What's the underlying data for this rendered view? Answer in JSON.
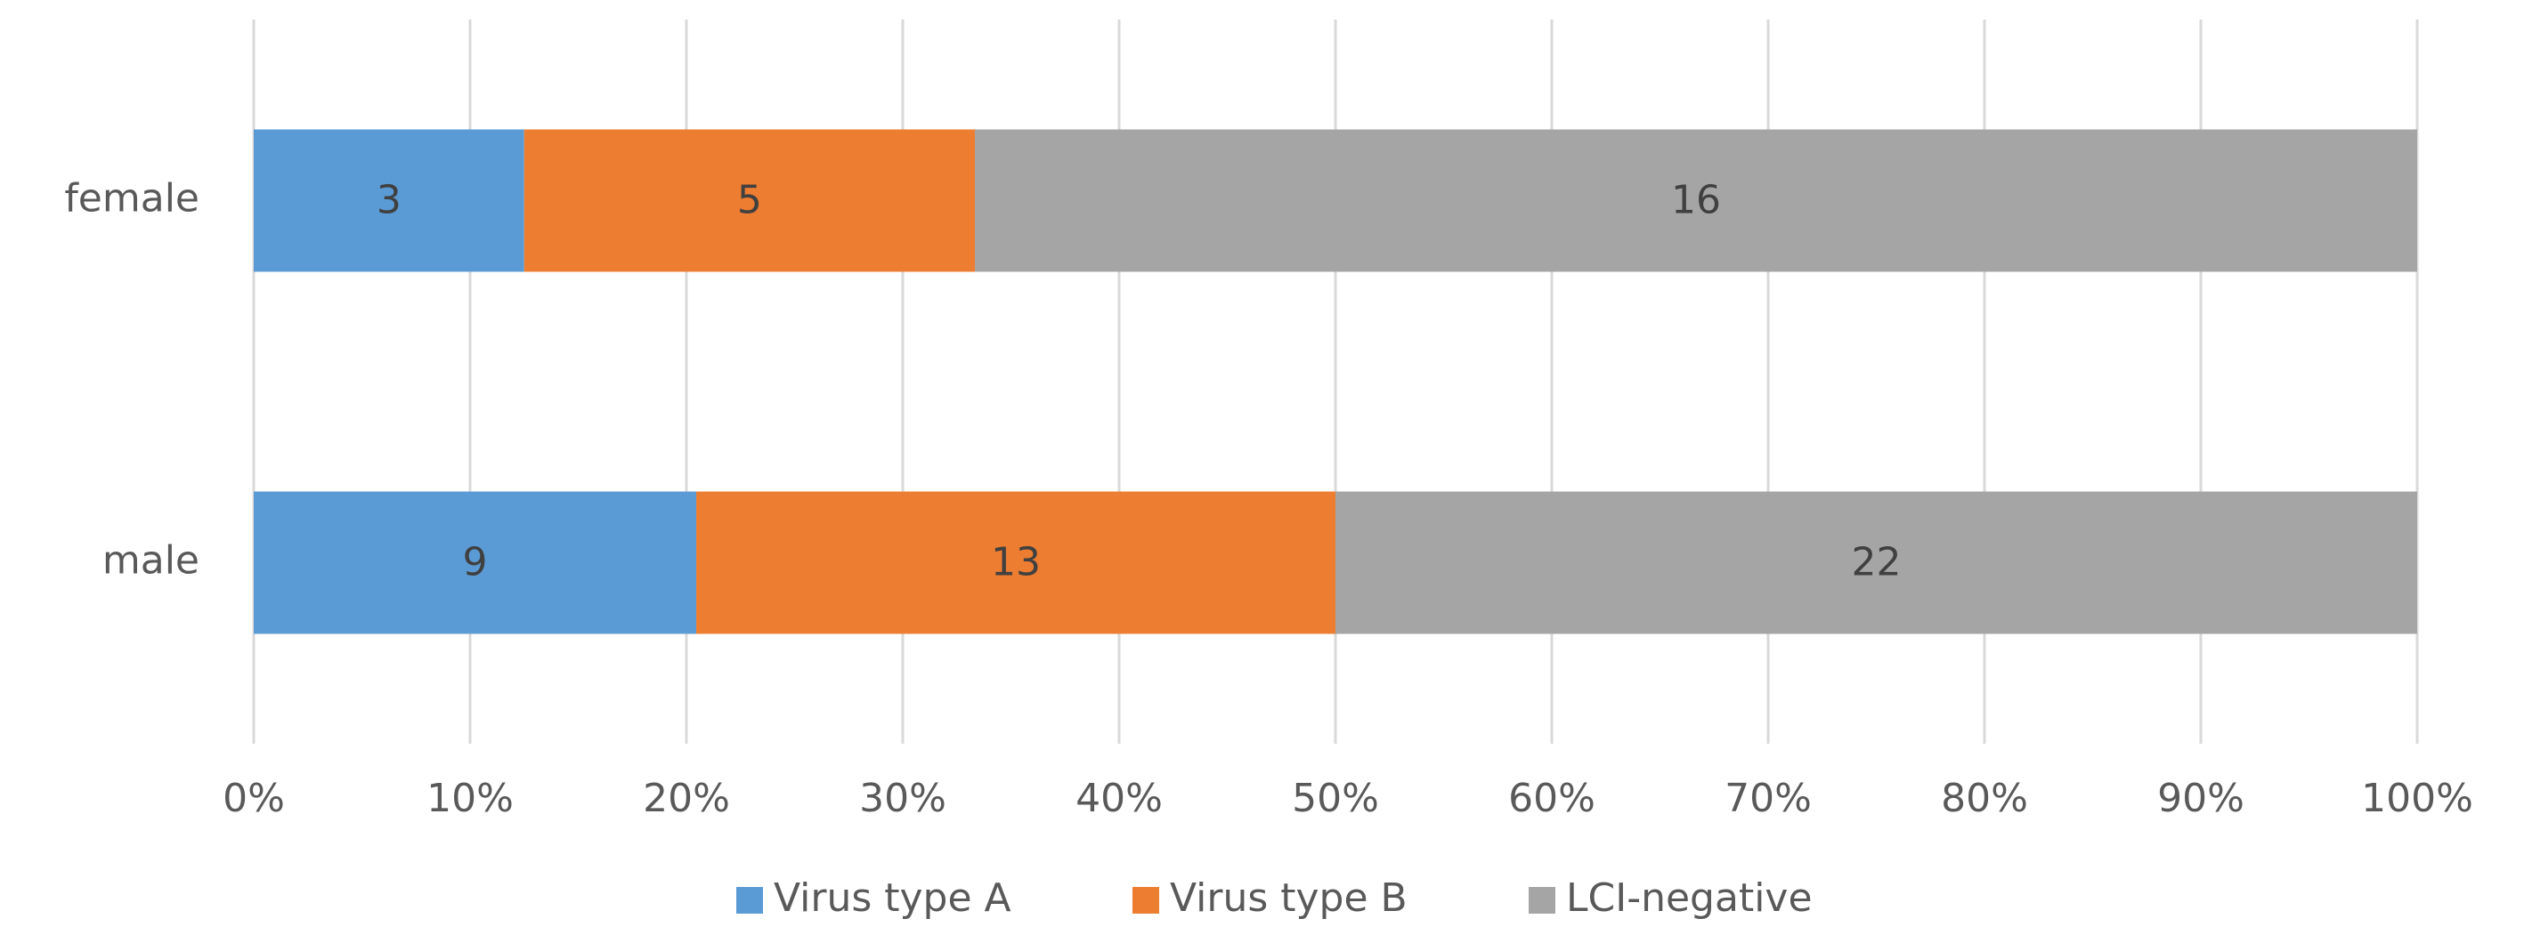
{
  "chart_data": {
    "type": "bar",
    "orientation": "horizontal",
    "stacked": "percent",
    "categories": [
      "female",
      "male"
    ],
    "series": [
      {
        "name": "Virus type A",
        "color": "#5b9bd5",
        "values": [
          3,
          9
        ]
      },
      {
        "name": "Virus type B",
        "color": "#ed7d31",
        "values": [
          5,
          13
        ]
      },
      {
        "name": "LCI-negative",
        "color": "#a5a5a5",
        "values": [
          16,
          22
        ]
      }
    ],
    "xlim": [
      0,
      100
    ],
    "xticks": [
      {
        "value": 0,
        "label": "0%"
      },
      {
        "value": 10,
        "label": "10%"
      },
      {
        "value": 20,
        "label": "20%"
      },
      {
        "value": 30,
        "label": "30%"
      },
      {
        "value": 40,
        "label": "40%"
      },
      {
        "value": 50,
        "label": "50%"
      },
      {
        "value": 60,
        "label": "60%"
      },
      {
        "value": 70,
        "label": "70%"
      },
      {
        "value": 80,
        "label": "80%"
      },
      {
        "value": 90,
        "label": "90%"
      },
      {
        "value": 100,
        "label": "100%"
      }
    ],
    "grid": true,
    "legend": "bottom"
  }
}
